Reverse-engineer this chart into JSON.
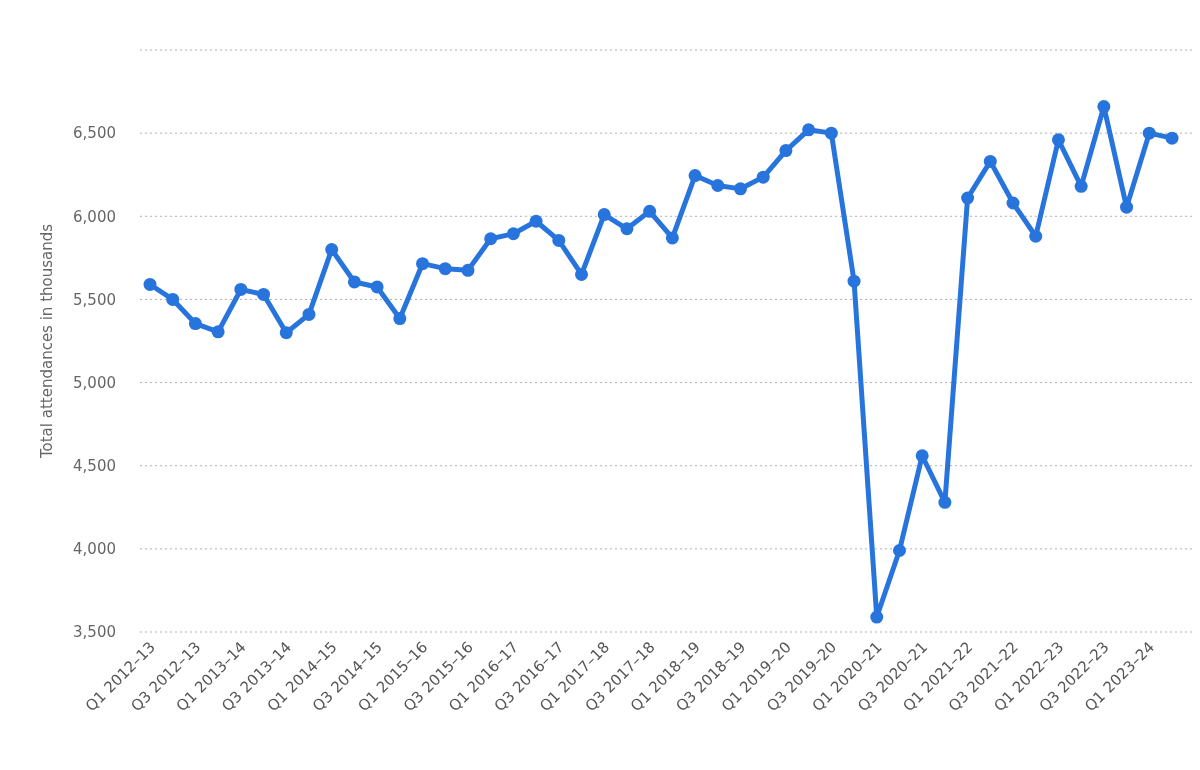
{
  "chart_data": {
    "type": "line",
    "ylabel": "Total attendances in thousands",
    "categories": [
      "Q1 2012–13",
      null,
      "Q3 2012–13",
      null,
      "Q1 2013–14",
      null,
      "Q3 2013–14",
      null,
      "Q1 2014–15",
      null,
      "Q3 2014–15",
      null,
      "Q1 2015–16",
      null,
      "Q3 2015–16",
      null,
      "Q1 2016–17",
      null,
      "Q3 2016–17",
      null,
      "Q1 2017–18",
      null,
      "Q3 2017–18",
      null,
      "Q1 2018–19",
      null,
      "Q3 2018–19",
      null,
      "Q1 2019–20",
      null,
      "Q3 2019–20",
      null,
      "Q1 2020–21",
      null,
      "Q3 2020–21",
      null,
      "Q1 2021–22",
      null,
      "Q3 2021–22",
      null,
      "Q1 2022–23",
      null,
      "Q3 2022–23",
      null,
      "Q1 2023–24",
      null
    ],
    "series": [
      {
        "color": "#2874dd",
        "values": [
          5590,
          5500,
          5355,
          5305,
          5560,
          5530,
          5300,
          5410,
          5800,
          5605,
          5575,
          5385,
          5715,
          5685,
          5675,
          5865,
          5895,
          5970,
          5855,
          5650,
          6010,
          5925,
          6030,
          5870,
          6245,
          6185,
          6165,
          6235,
          6395,
          6520,
          6500,
          5610,
          3590,
          3990,
          4560,
          4280,
          6110,
          6330,
          6080,
          5880,
          6460,
          6180,
          6660,
          6055,
          6500,
          6470
        ]
      }
    ],
    "ylim": [
      3500,
      7000
    ],
    "yticks": [
      {
        "value": 3500,
        "label": "3,500"
      },
      {
        "value": 4000,
        "label": "4,000"
      },
      {
        "value": 4500,
        "label": "4,500"
      },
      {
        "value": 5000,
        "label": "5,000"
      },
      {
        "value": 5500,
        "label": "5,500"
      },
      {
        "value": 6000,
        "label": "6,000"
      },
      {
        "value": 6500,
        "label": "6,500"
      },
      {
        "value": 7000,
        "label": null
      }
    ],
    "grid": "y",
    "marker": "circle",
    "line_style": "solid"
  }
}
